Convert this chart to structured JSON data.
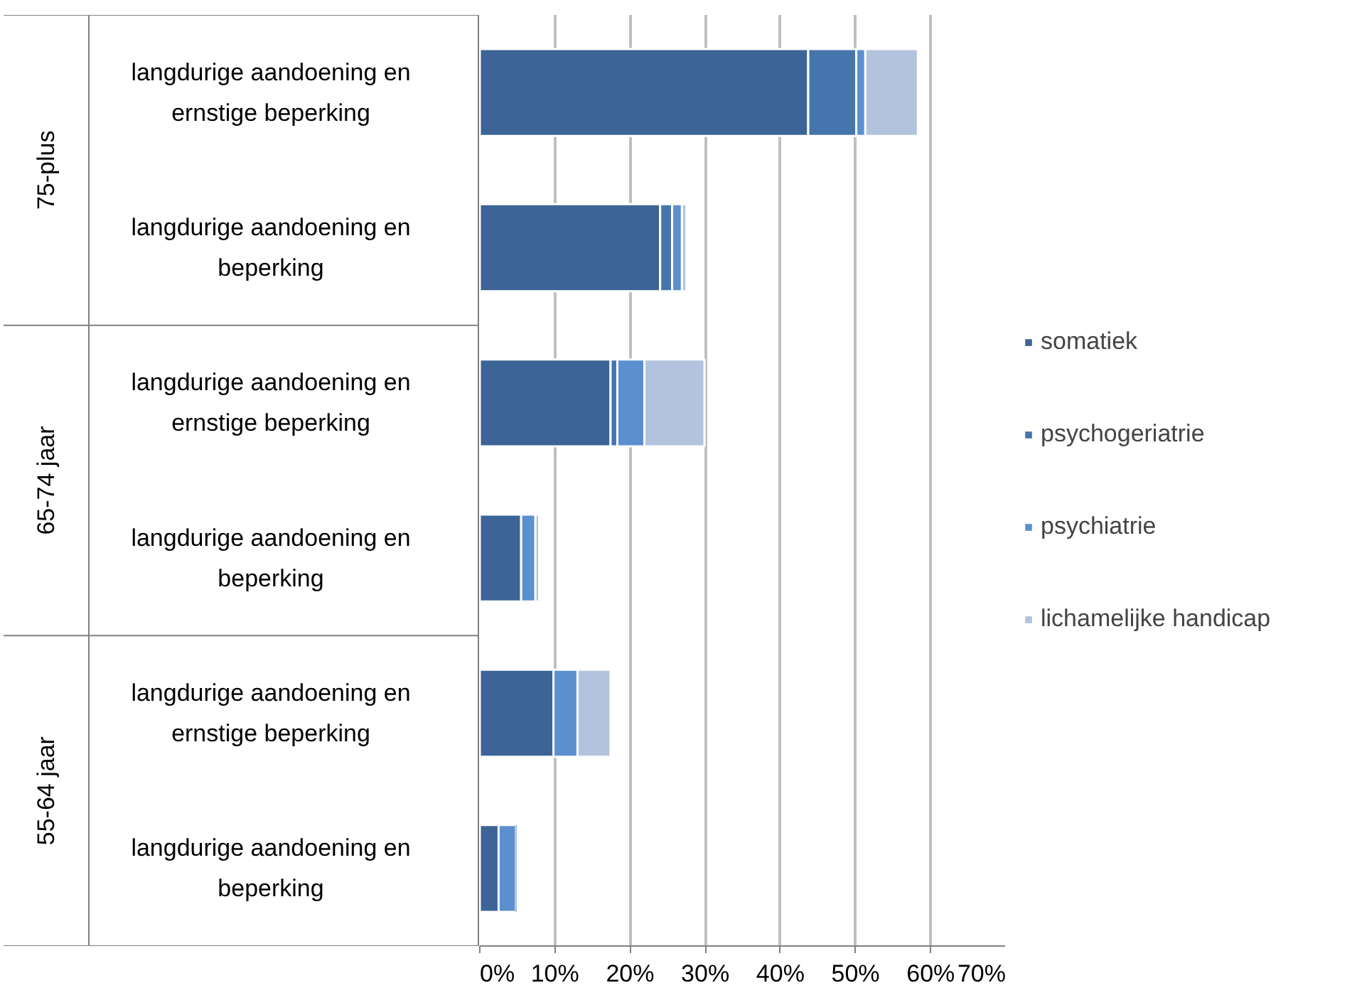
{
  "chart_data": {
    "type": "bar",
    "orientation": "horizontal",
    "stacked": true,
    "categories": [
      "langdurige aandoening en ernstige beperking",
      "langdurige aandoening en beperking",
      "langdurige aandoening en ernstige beperking",
      "langdurige aandoening en beperking",
      "langdurige aandoening en ernstige beperking",
      "langdurige aandoening en beperking"
    ],
    "annotations": [
      "75-plus",
      "65-74 jaar",
      "55-64 jaar"
    ],
    "series": [
      {
        "name": "somatiek",
        "color": "#3c6496",
        "values": [
          43.7,
          24.0,
          17.4,
          5.5,
          9.8,
          2.5
        ]
      },
      {
        "name": "psychogeriatrie",
        "color": "#4674ad",
        "values": [
          6.4,
          1.6,
          0.9,
          0,
          0,
          0
        ]
      },
      {
        "name": "psychiatrie",
        "color": "#5b8fd0",
        "values": [
          1.2,
          1.3,
          3.6,
          1.9,
          3.2,
          2.3
        ]
      },
      {
        "name": "lichamelijke handicap",
        "color": "#b3c3de",
        "values": [
          7.0,
          0.6,
          8.0,
          0.5,
          4.4,
          0
        ]
      }
    ],
    "xlim": [
      0,
      70
    ],
    "xticks": [
      {
        "value": 0,
        "label": "0%"
      },
      {
        "value": 10,
        "label": "10%"
      },
      {
        "value": 20,
        "label": "20%"
      },
      {
        "value": 30,
        "label": "30%"
      },
      {
        "value": 40,
        "label": "40%"
      },
      {
        "value": 50,
        "label": "50%"
      },
      {
        "value": 60,
        "label": "60%"
      },
      {
        "value": 70,
        "label": "70%"
      }
    ],
    "grid": "x",
    "legend": "right"
  }
}
